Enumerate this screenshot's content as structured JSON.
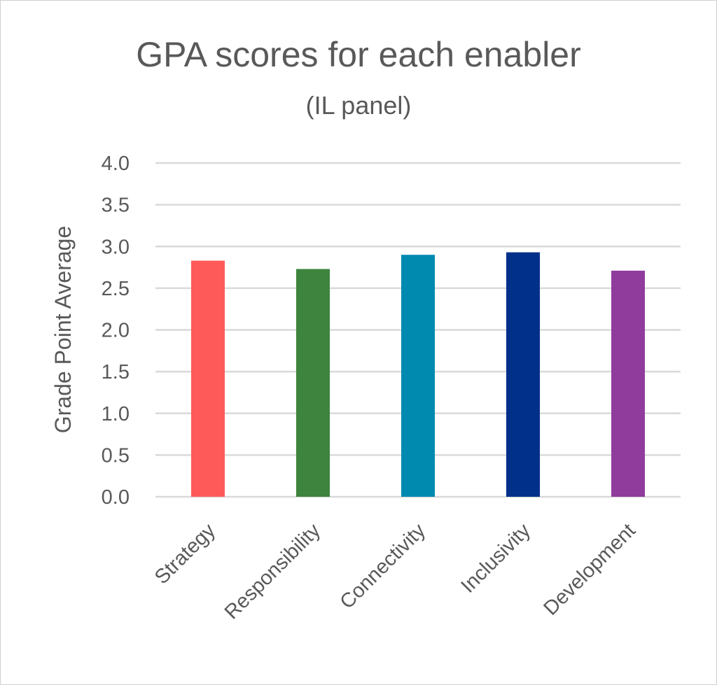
{
  "chart_data": {
    "type": "bar",
    "title": "GPA scores for each enabler",
    "subtitle": "(IL panel)",
    "xlabel": "",
    "ylabel": "Grade Point Average",
    "categories": [
      "Strategy",
      "Responsibility",
      "Connectivity",
      "Inclusivity",
      "Development"
    ],
    "values": [
      2.83,
      2.73,
      2.9,
      2.93,
      2.71
    ],
    "colors": [
      "#FF5A5A",
      "#3E843E",
      "#008AB0",
      "#00308A",
      "#8F3C9C"
    ],
    "ylim": [
      0,
      4
    ],
    "yticks": [
      "0.0",
      "0.5",
      "1.0",
      "1.5",
      "2.0",
      "2.5",
      "3.0",
      "3.5",
      "4.0"
    ],
    "grid": true,
    "legend": "none"
  }
}
